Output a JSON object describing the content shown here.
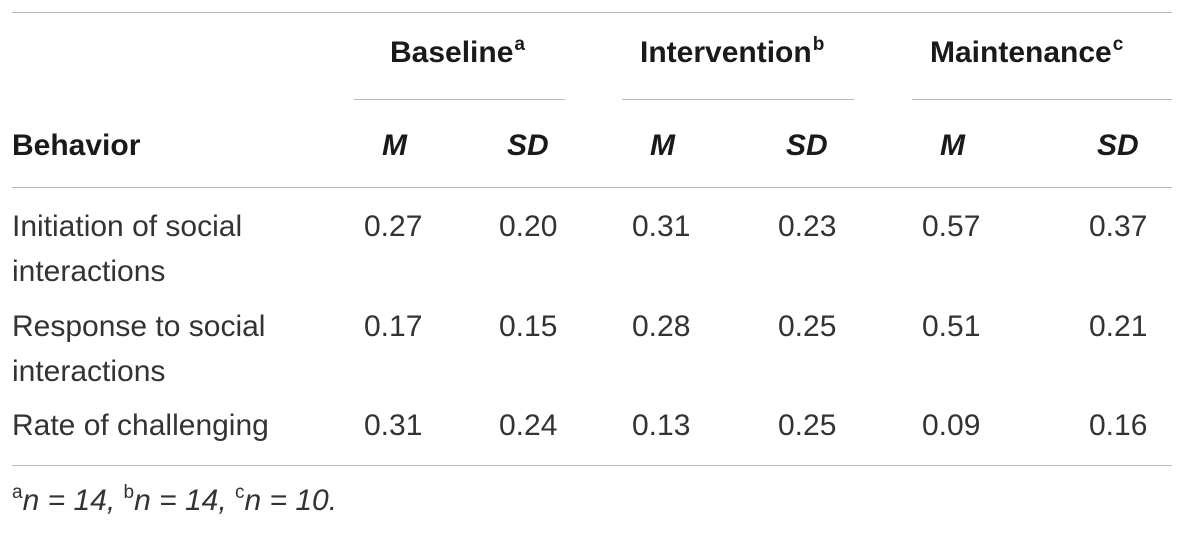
{
  "table": {
    "groups": [
      {
        "label": "Baseline",
        "sup": "a"
      },
      {
        "label": "Intervention",
        "sup": "b"
      },
      {
        "label": "Maintenance",
        "sup": "c"
      }
    ],
    "row_header": "Behavior",
    "sub_headers": [
      "M",
      "SD",
      "M",
      "SD",
      "M",
      "SD"
    ],
    "rows": [
      {
        "label": "Initiation of social interactions",
        "values": [
          "0.27",
          "0.20",
          "0.31",
          "0.23",
          "0.57",
          "0.37"
        ]
      },
      {
        "label": "Response to social interactions",
        "values": [
          "0.17",
          "0.15",
          "0.28",
          "0.25",
          "0.51",
          "0.21"
        ]
      },
      {
        "label": "Rate of challenging",
        "values": [
          "0.31",
          "0.24",
          "0.13",
          "0.25",
          "0.09",
          "0.16"
        ]
      }
    ]
  },
  "footnote": {
    "items": [
      {
        "sup": "a",
        "text": "n = 14,"
      },
      {
        "sup": "b",
        "text": "n = 14,"
      },
      {
        "sup": "c",
        "text": "n = 10."
      }
    ]
  }
}
